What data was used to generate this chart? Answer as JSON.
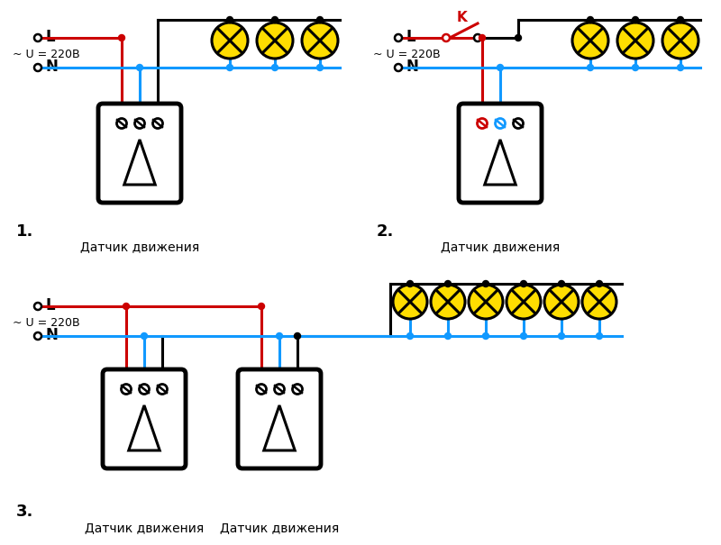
{
  "bg_color": "#ffffff",
  "line_color_black": "#000000",
  "line_color_red": "#cc0000",
  "line_color_blue": "#1199ff",
  "lamp_fill": "#ffdd00",
  "lamp_stroke": "#000000",
  "text_color": "#000000",
  "diagram1_label": "1.",
  "diagram2_label": "2.",
  "diagram3_label": "3.",
  "voltage_label": "~ U = 220В",
  "L_label": "L",
  "N_label": "N",
  "K_label": "K",
  "sensor_label": "Датчик движения"
}
